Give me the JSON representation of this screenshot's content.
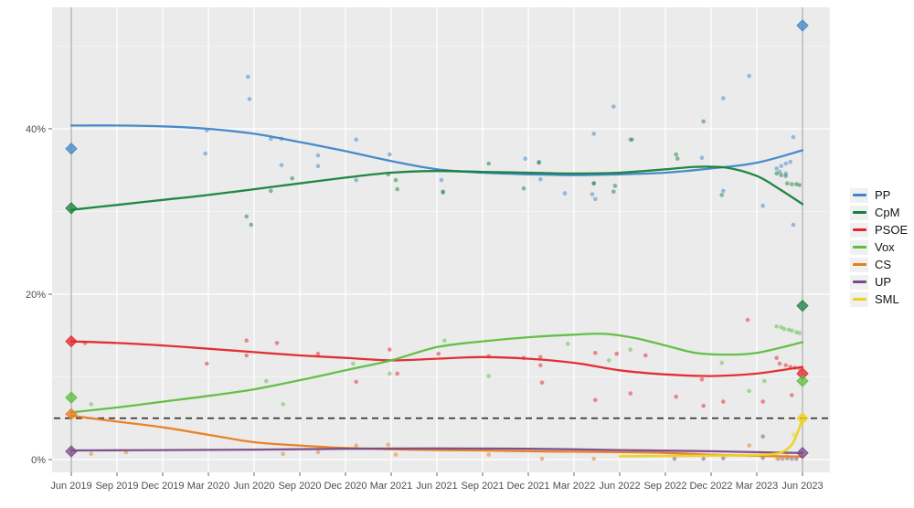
{
  "chart_data": {
    "type": "line+scatter",
    "description": "Poll tracker: smoothed party trend lines with individual poll dots and election-result diamonds (Jun 2019 and Jun 2023), plus 5% threshold dashed line",
    "x_axis": {
      "ticks": [
        "Jun 2019",
        "Sep 2019",
        "Dec 2019",
        "Mar 2020",
        "Jun 2020",
        "Sep 2020",
        "Dec 2020",
        "Mar 2021",
        "Jun 2021",
        "Sep 2021",
        "Dec 2021",
        "Mar 2022",
        "Jun 2022",
        "Sep 2022",
        "Dec 2022",
        "Mar 2023",
        "Jun 2023"
      ],
      "tick_months": [
        0,
        3,
        6,
        9,
        12,
        15,
        18,
        21,
        24,
        27,
        30,
        33,
        36,
        39,
        42,
        45,
        48
      ]
    },
    "y_axis": {
      "ticks": [
        "0%",
        "20%",
        "40%"
      ],
      "tick_values": [
        0,
        20,
        40
      ],
      "minor_values": [
        10,
        30,
        50
      ],
      "range_pct": [
        -1.6,
        54.7
      ]
    },
    "threshold": {
      "value": 5,
      "color": "#3a3a3a",
      "style": "dashed"
    },
    "election_vlines_months": [
      0,
      48
    ],
    "vline_color": "#aaaaaa",
    "panel_color": "#ebebeb",
    "grid_major_color": "#ffffff",
    "grid_minor_color": "#f3f3f3",
    "axis_text_color": "#4d4d4d",
    "legend_entries": [
      "PP",
      "CpM",
      "PSOE",
      "Vox",
      "CS",
      "UP",
      "SML"
    ],
    "series": [
      {
        "name": "PP",
        "color": "#3e86c8",
        "trend": [
          [
            0,
            40.4
          ],
          [
            3,
            40.4
          ],
          [
            6,
            40.3
          ],
          [
            9,
            40.0
          ],
          [
            12,
            39.4
          ],
          [
            15,
            38.4
          ],
          [
            18,
            37.3
          ],
          [
            21,
            36.1
          ],
          [
            24,
            35.1
          ],
          [
            27,
            34.7
          ],
          [
            30,
            34.5
          ],
          [
            33,
            34.4
          ],
          [
            36,
            34.5
          ],
          [
            39,
            34.7
          ],
          [
            42,
            35.2
          ],
          [
            45,
            35.9
          ],
          [
            48,
            37.4
          ]
        ],
        "polls": [
          [
            8.8,
            37.0
          ],
          [
            8.9,
            39.8
          ],
          [
            11.6,
            46.3
          ],
          [
            11.7,
            43.6
          ],
          [
            13.1,
            38.8
          ],
          [
            13.8,
            38.8
          ],
          [
            13.8,
            35.6
          ],
          [
            16.2,
            36.8
          ],
          [
            16.2,
            35.5
          ],
          [
            18.7,
            38.7
          ],
          [
            18.7,
            33.8
          ],
          [
            20.9,
            36.9
          ],
          [
            24.3,
            33.8
          ],
          [
            24.4,
            32.3
          ],
          [
            29.8,
            36.4
          ],
          [
            30.7,
            36.0
          ],
          [
            30.8,
            33.9
          ],
          [
            32.4,
            32.2
          ],
          [
            34.3,
            39.4
          ],
          [
            34.3,
            33.4
          ],
          [
            34.2,
            32.1
          ],
          [
            34.4,
            31.5
          ],
          [
            35.6,
            42.7
          ],
          [
            36.7,
            38.7
          ],
          [
            41.4,
            36.5
          ],
          [
            42.8,
            43.7
          ],
          [
            44.5,
            46.4
          ],
          [
            42.8,
            32.5
          ],
          [
            45.4,
            30.7
          ],
          [
            46.3,
            35.2
          ],
          [
            46.6,
            35.5
          ],
          [
            46.9,
            35.8
          ],
          [
            47.2,
            36.0
          ],
          [
            46.5,
            34.8
          ],
          [
            46.9,
            34.6
          ],
          [
            47.4,
            39.0
          ],
          [
            47.4,
            28.4
          ]
        ],
        "elections": [
          [
            0,
            37.6
          ],
          [
            48,
            52.5
          ]
        ]
      },
      {
        "name": "CpM",
        "color": "#16813c",
        "trend": [
          [
            0,
            30.2
          ],
          [
            3,
            30.8
          ],
          [
            6,
            31.4
          ],
          [
            9,
            32.0
          ],
          [
            12,
            32.7
          ],
          [
            15,
            33.4
          ],
          [
            18,
            34.1
          ],
          [
            21,
            34.7
          ],
          [
            24,
            34.9
          ],
          [
            27,
            34.8
          ],
          [
            30,
            34.7
          ],
          [
            33,
            34.6
          ],
          [
            36,
            34.7
          ],
          [
            39,
            35.1
          ],
          [
            41,
            35.4
          ],
          [
            43,
            35.3
          ],
          [
            45,
            34.3
          ],
          [
            46.5,
            32.7
          ],
          [
            48,
            30.9
          ]
        ],
        "polls": [
          [
            11.5,
            29.4
          ],
          [
            11.8,
            28.4
          ],
          [
            13.1,
            32.5
          ],
          [
            14.5,
            34.0
          ],
          [
            20.8,
            34.5
          ],
          [
            21.3,
            33.8
          ],
          [
            21.4,
            32.7
          ],
          [
            24.4,
            32.4
          ],
          [
            27.4,
            35.8
          ],
          [
            29.7,
            32.8
          ],
          [
            30.7,
            35.9
          ],
          [
            34.3,
            33.4
          ],
          [
            35.7,
            33.1
          ],
          [
            35.6,
            32.4
          ],
          [
            36.8,
            38.7
          ],
          [
            39.7,
            36.9
          ],
          [
            39.8,
            36.4
          ],
          [
            41.5,
            40.9
          ],
          [
            42.7,
            32.0
          ],
          [
            46.3,
            34.6
          ],
          [
            46.6,
            34.4
          ],
          [
            46.9,
            34.3
          ],
          [
            47.0,
            33.4
          ],
          [
            47.3,
            33.3
          ],
          [
            47.6,
            33.3
          ],
          [
            47.8,
            33.2
          ]
        ],
        "elections": [
          [
            0,
            30.4
          ],
          [
            48,
            18.6
          ]
        ]
      },
      {
        "name": "PSOE",
        "color": "#e2262b",
        "trend": [
          [
            0,
            14.3
          ],
          [
            3,
            14.1
          ],
          [
            6,
            13.8
          ],
          [
            9,
            13.4
          ],
          [
            12,
            13.0
          ],
          [
            15,
            12.6
          ],
          [
            18,
            12.3
          ],
          [
            21,
            12.0
          ],
          [
            24,
            12.2
          ],
          [
            27,
            12.4
          ],
          [
            30,
            12.2
          ],
          [
            33,
            11.7
          ],
          [
            36,
            10.8
          ],
          [
            39,
            10.3
          ],
          [
            42,
            10.1
          ],
          [
            45,
            10.4
          ],
          [
            48,
            11.2
          ]
        ],
        "polls": [
          [
            0.9,
            14.1
          ],
          [
            8.9,
            11.6
          ],
          [
            11.5,
            14.4
          ],
          [
            11.5,
            12.6
          ],
          [
            13.5,
            14.1
          ],
          [
            16.2,
            12.8
          ],
          [
            18.7,
            9.4
          ],
          [
            20.9,
            13.3
          ],
          [
            21.4,
            10.4
          ],
          [
            24.1,
            12.8
          ],
          [
            27.4,
            12.5
          ],
          [
            29.7,
            12.3
          ],
          [
            30.8,
            12.4
          ],
          [
            30.8,
            11.4
          ],
          [
            30.9,
            9.3
          ],
          [
            34.4,
            12.9
          ],
          [
            34.4,
            7.2
          ],
          [
            35.8,
            12.8
          ],
          [
            36.7,
            8.0
          ],
          [
            37.7,
            12.6
          ],
          [
            39.7,
            7.6
          ],
          [
            41.4,
            9.7
          ],
          [
            41.5,
            6.5
          ],
          [
            42.8,
            7.0
          ],
          [
            44.4,
            16.9
          ],
          [
            45.4,
            7.0
          ],
          [
            46.3,
            12.3
          ],
          [
            46.5,
            11.6
          ],
          [
            46.9,
            11.4
          ],
          [
            47.2,
            11.2
          ],
          [
            47.5,
            11.1
          ],
          [
            47.8,
            11.0
          ],
          [
            47.3,
            7.8
          ]
        ],
        "elections": [
          [
            0,
            14.3
          ],
          [
            48,
            10.4
          ]
        ]
      },
      {
        "name": "Vox",
        "color": "#5dbe3f",
        "trend": [
          [
            0,
            5.7
          ],
          [
            3,
            6.3
          ],
          [
            6,
            7.0
          ],
          [
            9,
            7.7
          ],
          [
            12,
            8.5
          ],
          [
            15,
            9.6
          ],
          [
            18,
            10.8
          ],
          [
            21,
            12.0
          ],
          [
            24,
            13.6
          ],
          [
            27,
            14.3
          ],
          [
            30,
            14.8
          ],
          [
            33,
            15.1
          ],
          [
            35,
            15.2
          ],
          [
            37,
            14.7
          ],
          [
            39,
            13.8
          ],
          [
            41,
            12.9
          ],
          [
            43,
            12.7
          ],
          [
            45,
            12.9
          ],
          [
            48,
            14.2
          ]
        ],
        "polls": [
          [
            1.3,
            6.7
          ],
          [
            12.8,
            9.5
          ],
          [
            13.9,
            6.7
          ],
          [
            18.5,
            11.6
          ],
          [
            20.9,
            10.4
          ],
          [
            24.5,
            14.4
          ],
          [
            27.4,
            10.1
          ],
          [
            32.6,
            14.0
          ],
          [
            35.3,
            12.0
          ],
          [
            36.7,
            13.3
          ],
          [
            42.7,
            11.7
          ],
          [
            44.5,
            8.3
          ],
          [
            45.5,
            9.5
          ],
          [
            46.3,
            16.1
          ],
          [
            46.6,
            16.0
          ],
          [
            46.8,
            15.8
          ],
          [
            47.1,
            15.7
          ],
          [
            47.3,
            15.6
          ],
          [
            47.6,
            15.4
          ],
          [
            47.8,
            15.3
          ]
        ],
        "elections": [
          [
            0,
            7.5
          ],
          [
            48,
            9.5
          ]
        ]
      },
      {
        "name": "CS",
        "color": "#e87d1e",
        "trend": [
          [
            0,
            5.3
          ],
          [
            3,
            4.6
          ],
          [
            6,
            3.9
          ],
          [
            9,
            3.0
          ],
          [
            12,
            2.1
          ],
          [
            15,
            1.7
          ],
          [
            18,
            1.4
          ],
          [
            21,
            1.25
          ],
          [
            24,
            1.15
          ],
          [
            27,
            1.1
          ],
          [
            30,
            1.0
          ],
          [
            33,
            0.95
          ],
          [
            36,
            0.9
          ],
          [
            39,
            0.8
          ],
          [
            42,
            0.6
          ],
          [
            45,
            0.45
          ],
          [
            48,
            0.35
          ]
        ],
        "polls": [
          [
            1.3,
            0.7
          ],
          [
            3.6,
            0.9
          ],
          [
            13.9,
            0.7
          ],
          [
            16.2,
            0.9
          ],
          [
            18.7,
            1.7
          ],
          [
            20.8,
            1.8
          ],
          [
            21.3,
            0.6
          ],
          [
            27.4,
            0.6
          ],
          [
            30.9,
            0.1
          ],
          [
            34.3,
            0.1
          ],
          [
            44.5,
            1.7
          ]
        ],
        "elections": [
          [
            0,
            5.5
          ]
        ]
      },
      {
        "name": "UP",
        "color": "#7a4a88",
        "trend": [
          [
            0,
            1.1
          ],
          [
            6,
            1.15
          ],
          [
            12,
            1.2
          ],
          [
            18,
            1.3
          ],
          [
            24,
            1.35
          ],
          [
            30,
            1.3
          ],
          [
            36,
            1.15
          ],
          [
            42,
            1.0
          ],
          [
            45,
            0.9
          ],
          [
            48,
            0.8
          ]
        ],
        "polls": [
          [
            39.6,
            0.1
          ],
          [
            41.5,
            0.1
          ],
          [
            42.8,
            0.15
          ],
          [
            45.4,
            0.2
          ],
          [
            45.4,
            2.8
          ],
          [
            46.4,
            0.1
          ],
          [
            46.7,
            0.1
          ],
          [
            47.0,
            0.15
          ],
          [
            47.3,
            0.1
          ],
          [
            47.6,
            0.1
          ]
        ],
        "elections": [
          [
            0,
            1.0
          ],
          [
            48,
            0.8
          ]
        ]
      },
      {
        "name": "SML",
        "color": "#edd21f",
        "trend": [
          [
            36,
            0.4
          ],
          [
            40,
            0.45
          ],
          [
            43,
            0.5
          ],
          [
            45,
            0.55
          ],
          [
            46.5,
            0.8
          ],
          [
            47.3,
            1.8
          ],
          [
            47.7,
            3.4
          ],
          [
            48,
            4.9
          ]
        ],
        "polls": [
          [
            46.3,
            0.1
          ],
          [
            46.8,
            0.2
          ],
          [
            47.0,
            0.7
          ],
          [
            47.4,
            3.0
          ]
        ],
        "elections": [
          [
            48,
            5.0
          ]
        ]
      }
    ]
  }
}
